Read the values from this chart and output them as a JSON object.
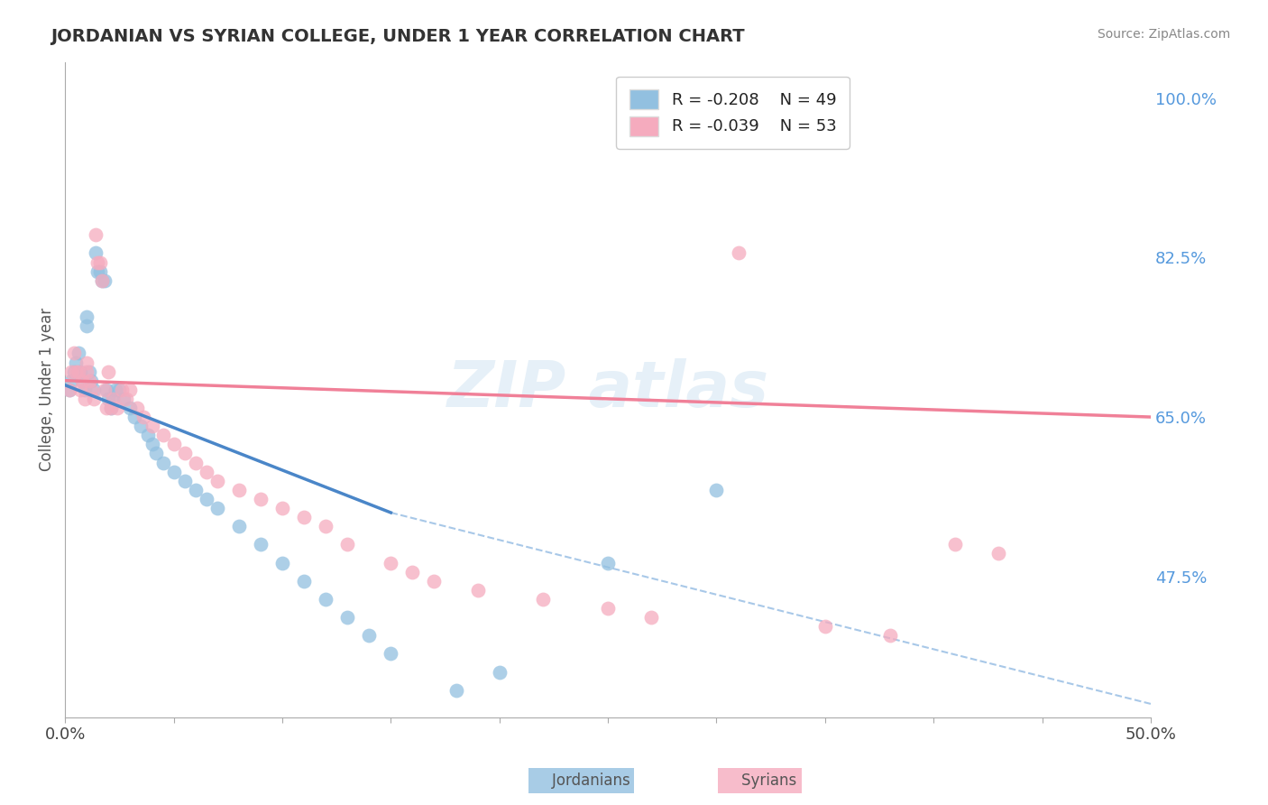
{
  "title": "JORDANIAN VS SYRIAN COLLEGE, UNDER 1 YEAR CORRELATION CHART",
  "source_text": "Source: ZipAtlas.com",
  "ylabel": "College, Under 1 year",
  "xlim": [
    0.0,
    0.5
  ],
  "ylim": [
    0.32,
    1.04
  ],
  "right_yticks": [
    0.475,
    0.65,
    0.825,
    1.0
  ],
  "right_yticklabels": [
    "47.5%",
    "65.0%",
    "82.5%",
    "100.0%"
  ],
  "legend_r1": "R = -0.208",
  "legend_n1": "N = 49",
  "legend_r2": "R = -0.039",
  "legend_n2": "N = 53",
  "color_jordanian": "#92C0E0",
  "color_syrian": "#F5ABBE",
  "color_jordanian_line": "#4A86C8",
  "color_syrian_line": "#F08098",
  "color_dashed": "#A8C8E8",
  "watermark_text": "ZIP atlas",
  "background_color": "#ffffff",
  "grid_color": "#e8e8e8",
  "jordanian_x": [
    0.002,
    0.003,
    0.004,
    0.005,
    0.006,
    0.007,
    0.008,
    0.009,
    0.01,
    0.01,
    0.011,
    0.012,
    0.013,
    0.014,
    0.015,
    0.016,
    0.017,
    0.018,
    0.019,
    0.02,
    0.021,
    0.022,
    0.023,
    0.025,
    0.027,
    0.03,
    0.032,
    0.035,
    0.038,
    0.04,
    0.042,
    0.045,
    0.05,
    0.055,
    0.06,
    0.065,
    0.07,
    0.08,
    0.09,
    0.1,
    0.11,
    0.12,
    0.13,
    0.14,
    0.15,
    0.18,
    0.2,
    0.25,
    0.3
  ],
  "jordanian_y": [
    0.68,
    0.69,
    0.7,
    0.71,
    0.72,
    0.7,
    0.69,
    0.68,
    0.75,
    0.76,
    0.7,
    0.69,
    0.68,
    0.83,
    0.81,
    0.81,
    0.8,
    0.8,
    0.68,
    0.67,
    0.66,
    0.67,
    0.68,
    0.68,
    0.67,
    0.66,
    0.65,
    0.64,
    0.63,
    0.62,
    0.61,
    0.6,
    0.59,
    0.58,
    0.57,
    0.56,
    0.55,
    0.53,
    0.51,
    0.49,
    0.47,
    0.45,
    0.43,
    0.41,
    0.39,
    0.35,
    0.37,
    0.49,
    0.57
  ],
  "syrian_x": [
    0.002,
    0.003,
    0.004,
    0.005,
    0.006,
    0.007,
    0.008,
    0.009,
    0.01,
    0.01,
    0.011,
    0.012,
    0.013,
    0.014,
    0.015,
    0.016,
    0.017,
    0.018,
    0.019,
    0.02,
    0.021,
    0.022,
    0.024,
    0.026,
    0.028,
    0.03,
    0.033,
    0.036,
    0.04,
    0.045,
    0.05,
    0.055,
    0.06,
    0.065,
    0.07,
    0.08,
    0.09,
    0.1,
    0.11,
    0.12,
    0.13,
    0.15,
    0.16,
    0.17,
    0.19,
    0.22,
    0.25,
    0.27,
    0.31,
    0.35,
    0.38,
    0.41,
    0.43
  ],
  "syrian_y": [
    0.68,
    0.7,
    0.72,
    0.7,
    0.7,
    0.68,
    0.69,
    0.67,
    0.71,
    0.7,
    0.69,
    0.68,
    0.67,
    0.85,
    0.82,
    0.82,
    0.8,
    0.68,
    0.66,
    0.7,
    0.66,
    0.67,
    0.66,
    0.68,
    0.67,
    0.68,
    0.66,
    0.65,
    0.64,
    0.63,
    0.62,
    0.61,
    0.6,
    0.59,
    0.58,
    0.57,
    0.56,
    0.55,
    0.54,
    0.53,
    0.51,
    0.49,
    0.48,
    0.47,
    0.46,
    0.45,
    0.44,
    0.43,
    0.83,
    0.42,
    0.41,
    0.51,
    0.5
  ],
  "jord_line_x": [
    0.0,
    0.15
  ],
  "jord_line_y": [
    0.685,
    0.545
  ],
  "syr_line_x": [
    0.0,
    0.5
  ],
  "syr_line_y": [
    0.69,
    0.65
  ],
  "dash_line_x": [
    0.15,
    0.5
  ],
  "dash_line_y": [
    0.545,
    0.335
  ]
}
